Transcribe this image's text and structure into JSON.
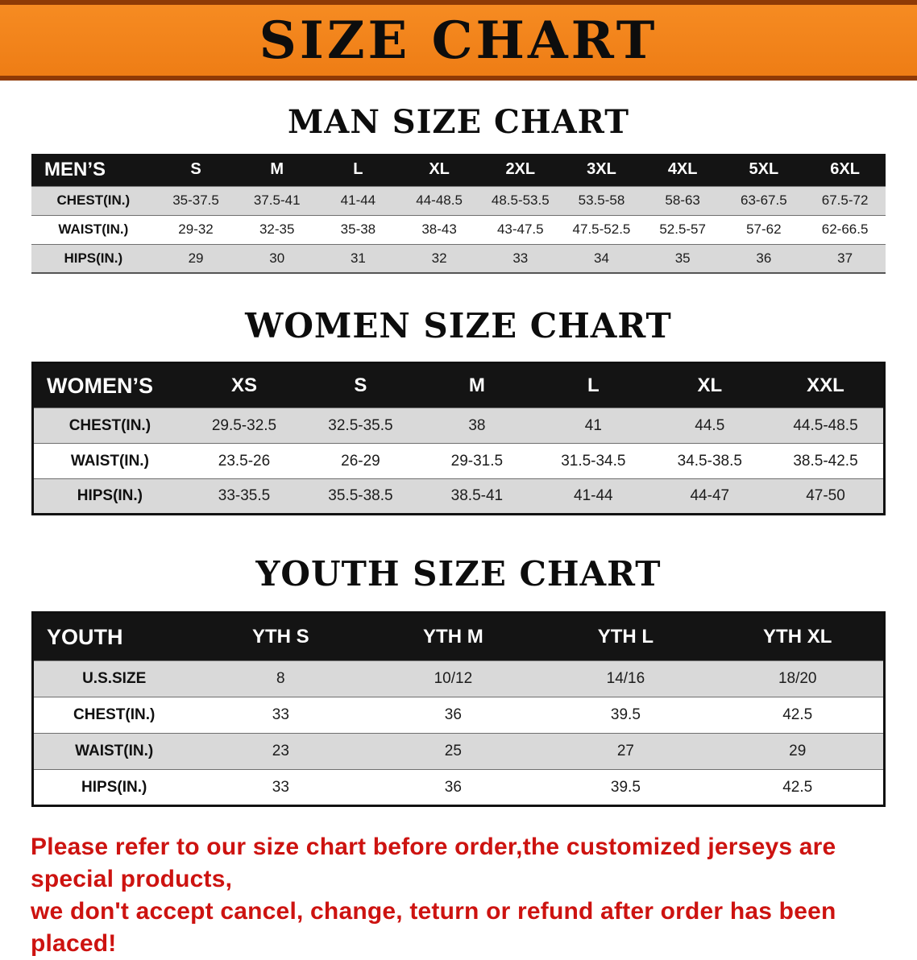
{
  "banner": {
    "title": "SIZE CHART",
    "background_color": "#f1821e",
    "accent_color": "#8e3a06"
  },
  "colors": {
    "table_header_bg": "#141414",
    "row_shade": "#d9d9d9",
    "disclaimer_red": "#cd1310"
  },
  "sections": [
    {
      "heading": "MAN SIZE CHART",
      "table": {
        "header": [
          "MEN’S",
          "S",
          "M",
          "L",
          "XL",
          "2XL",
          "3XL",
          "4XL",
          "5XL",
          "6XL"
        ],
        "rows": [
          [
            "CHEST(IN.)",
            "35-37.5",
            "37.5-41",
            "41-44",
            "44-48.5",
            "48.5-53.5",
            "53.5-58",
            "58-63",
            "63-67.5",
            "67.5-72"
          ],
          [
            "WAIST(IN.)",
            "29-32",
            "32-35",
            "35-38",
            "38-43",
            "43-47.5",
            "47.5-52.5",
            "52.5-57",
            "57-62",
            "62-66.5"
          ],
          [
            "HIPS(IN.)",
            "29",
            "30",
            "31",
            "32",
            "33",
            "34",
            "35",
            "36",
            "37"
          ]
        ]
      }
    },
    {
      "heading": "WOMEN SIZE CHART",
      "table": {
        "header": [
          "WOMEN’S",
          "XS",
          "S",
          "M",
          "L",
          "XL",
          "XXL"
        ],
        "rows": [
          [
            "CHEST(IN.)",
            "29.5-32.5",
            "32.5-35.5",
            "38",
            "41",
            "44.5",
            "44.5-48.5"
          ],
          [
            "WAIST(IN.)",
            "23.5-26",
            "26-29",
            "29-31.5",
            "31.5-34.5",
            "34.5-38.5",
            "38.5-42.5"
          ],
          [
            "HIPS(IN.)",
            "33-35.5",
            "35.5-38.5",
            "38.5-41",
            "41-44",
            "44-47",
            "47-50"
          ]
        ]
      }
    },
    {
      "heading": "YOUTH SIZE CHART",
      "table": {
        "header": [
          "YOUTH",
          "YTH S",
          "YTH M",
          "YTH L",
          "YTH XL"
        ],
        "rows": [
          [
            "U.S.SIZE",
            "8",
            "10/12",
            "14/16",
            "18/20"
          ],
          [
            "CHEST(IN.)",
            "33",
            "36",
            "39.5",
            "42.5"
          ],
          [
            "WAIST(IN.)",
            "23",
            "25",
            "27",
            "29"
          ],
          [
            "HIPS(IN.)",
            "33",
            "36",
            "39.5",
            "42.5"
          ]
        ]
      }
    }
  ],
  "disclaimer": {
    "line1": "Please refer to our size chart before order,the customized jerseys are special products,",
    "line2": "we don't accept cancel, change, teturn or refund after order has been placed!"
  }
}
